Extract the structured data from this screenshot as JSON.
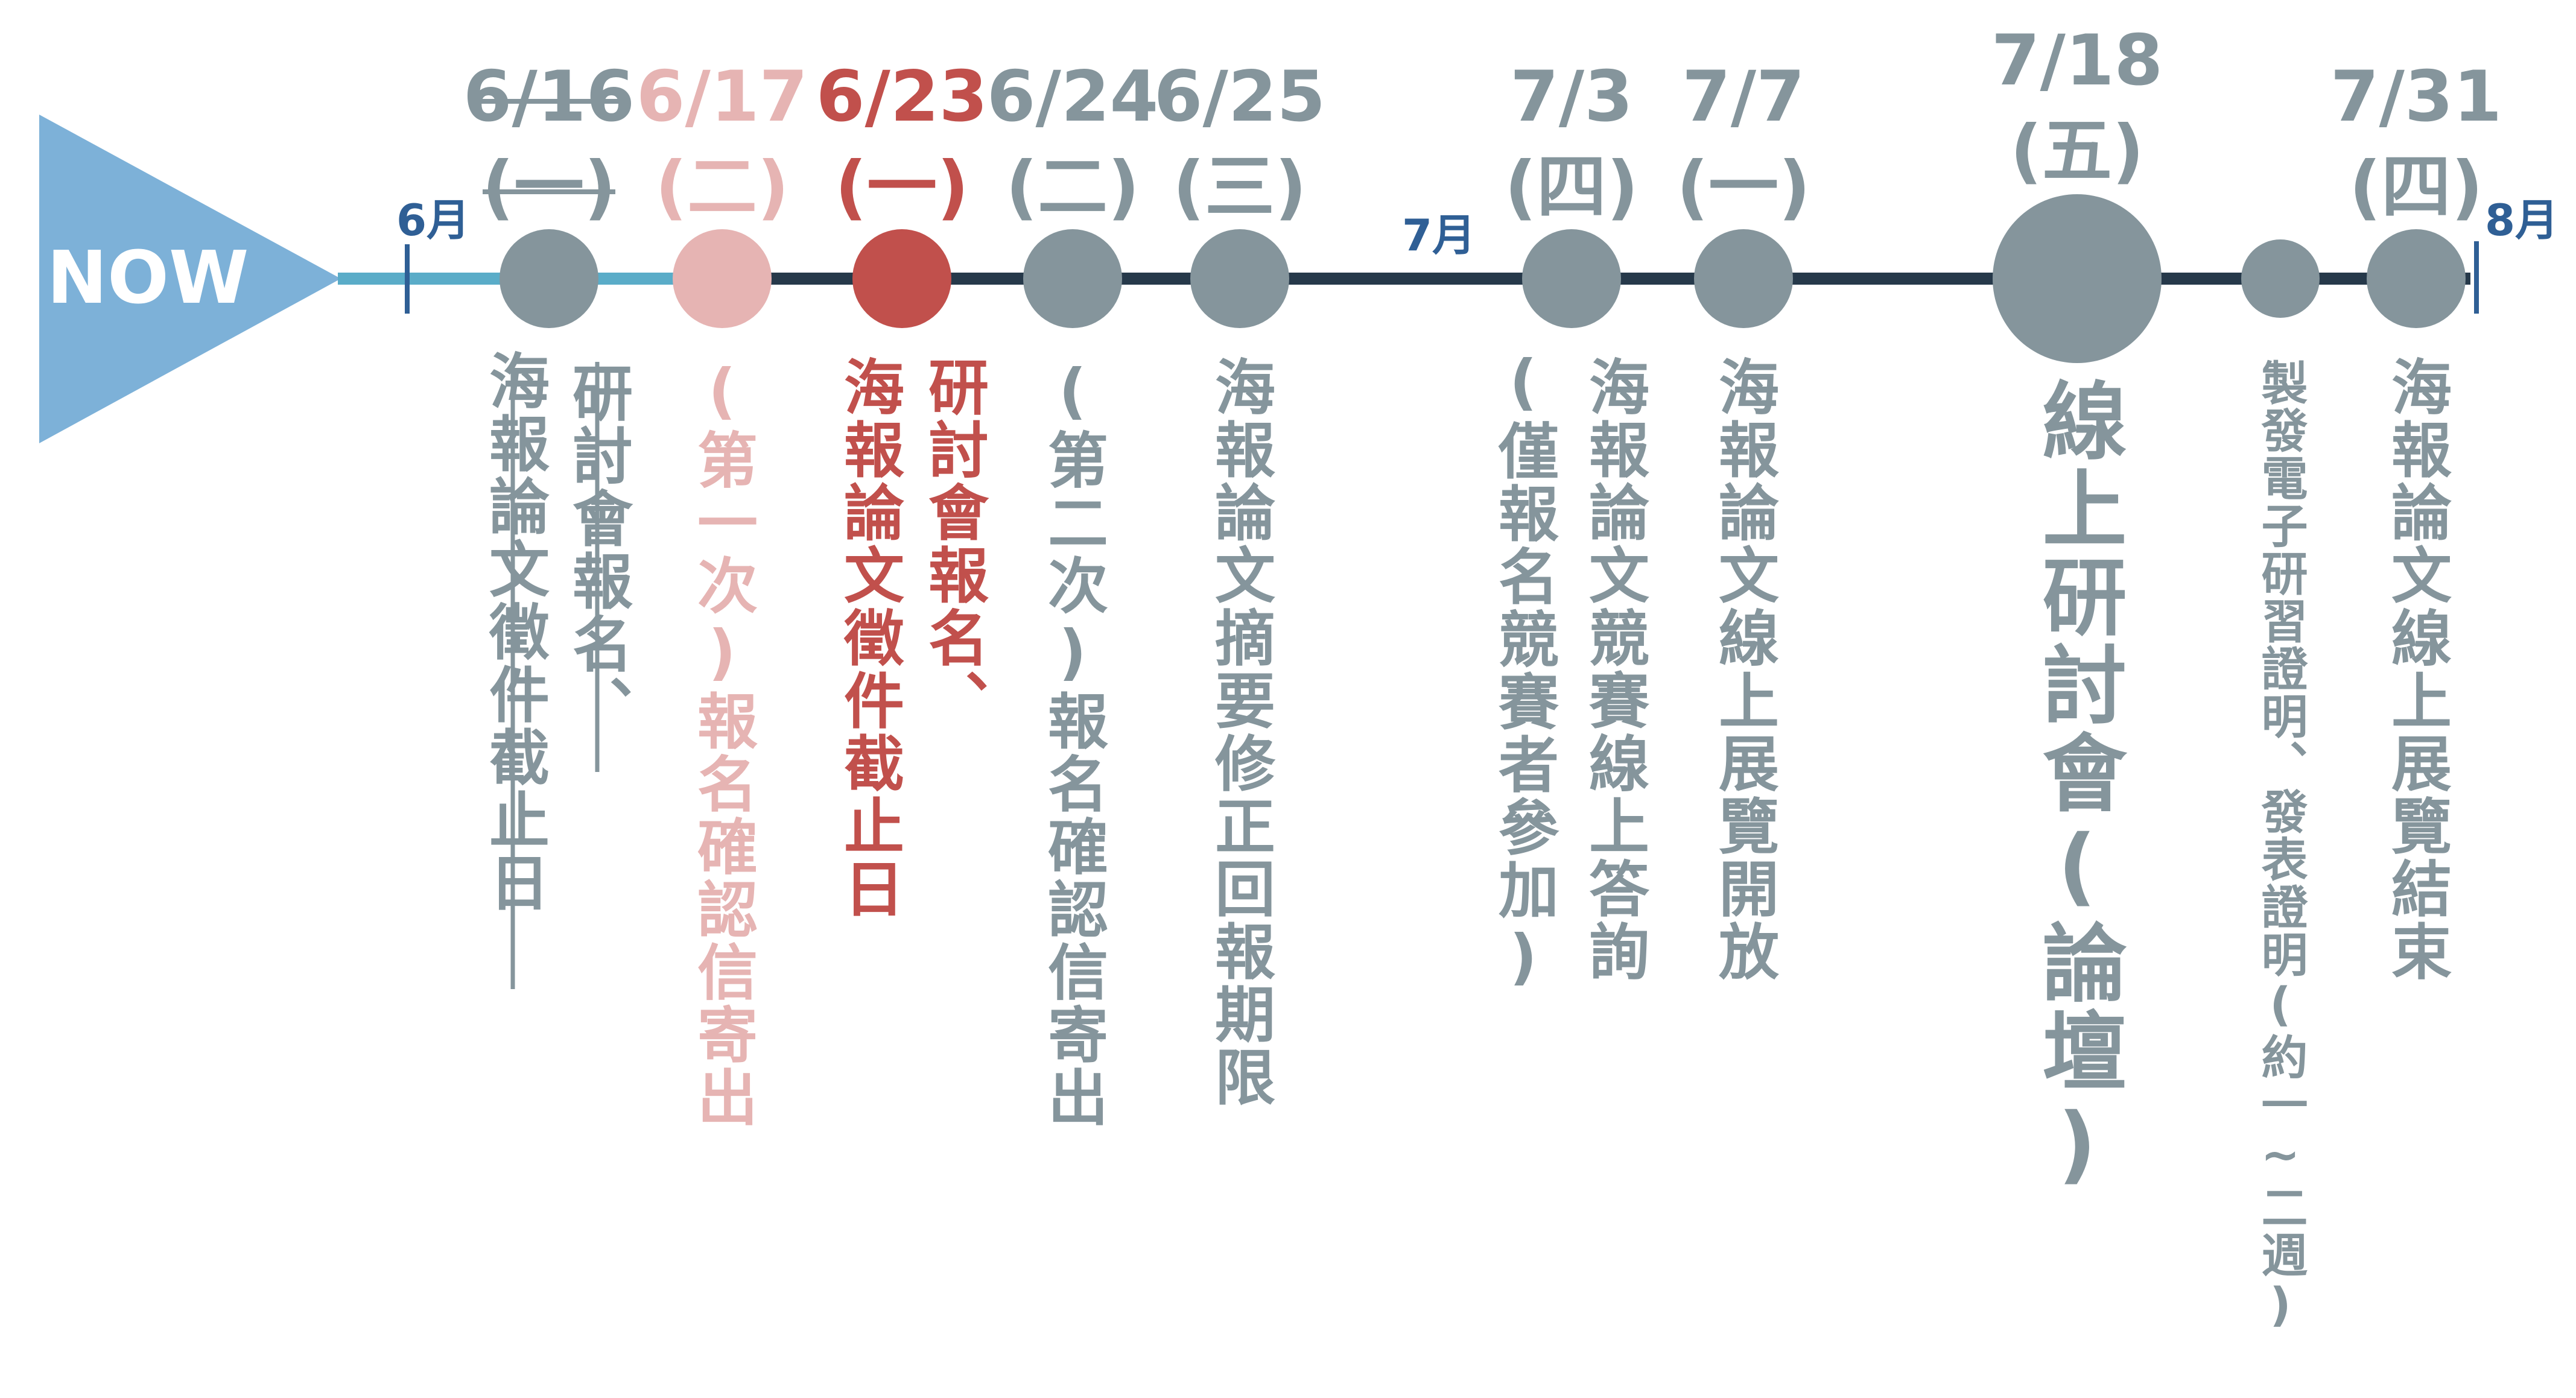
{
  "now_label": "NOW",
  "month_labels": [
    "6月",
    "7月",
    "8月"
  ],
  "events": [
    {
      "date": "6/16",
      "weekday": "(一)",
      "lines": [
        "研討會報名、",
        "海報論文徵件截止日"
      ],
      "status": "past",
      "color": "#85959c"
    },
    {
      "date": "6/17",
      "weekday": "(二)",
      "lines": [
        "(第一次)報名確認信寄出"
      ],
      "status": "past-light",
      "color": "#e6b4b3"
    },
    {
      "date": "6/23",
      "weekday": "(一)",
      "lines": [
        "研討會報名、",
        "海報論文徵件截止日"
      ],
      "status": "current",
      "color": "#c1504c"
    },
    {
      "date": "6/24",
      "weekday": "(二)",
      "lines": [
        "(第二次)報名確認信寄出"
      ],
      "status": "upcoming",
      "color": "#85959c"
    },
    {
      "date": "6/25",
      "weekday": "(三)",
      "lines": [
        "海報論文摘要修正回報期限"
      ],
      "status": "upcoming",
      "color": "#85959c"
    },
    {
      "date": "7/3",
      "weekday": "(四)",
      "lines": [
        "海報論文競賽線上答詢",
        "(僅報名競賽者參加)"
      ],
      "status": "upcoming",
      "color": "#85959c"
    },
    {
      "date": "7/7",
      "weekday": "(一)",
      "lines": [
        "海報論文線上展覽開放"
      ],
      "status": "upcoming",
      "color": "#85959c"
    },
    {
      "date": "7/18",
      "weekday": "(五)",
      "lines": [
        "線上研討會(論壇)"
      ],
      "status": "major",
      "color": "#85959c"
    },
    {
      "date": "",
      "weekday": "",
      "lines": [
        "製發電子研習證明、發表證明(約一~二週)"
      ],
      "status": "minor",
      "color": "#85959c"
    },
    {
      "date": "7/31",
      "weekday": "(四)",
      "lines": [
        "海報論文線上展覽結束"
      ],
      "status": "upcoming",
      "color": "#85959c"
    }
  ],
  "colors": {
    "now_arrow": "#7db1d8",
    "line_past": "#5aacc8",
    "line_future": "#26394a",
    "month_tick": "#2f5f95",
    "grey": "#85959c",
    "light_red": "#e6b4b3",
    "red": "#c1504c"
  }
}
